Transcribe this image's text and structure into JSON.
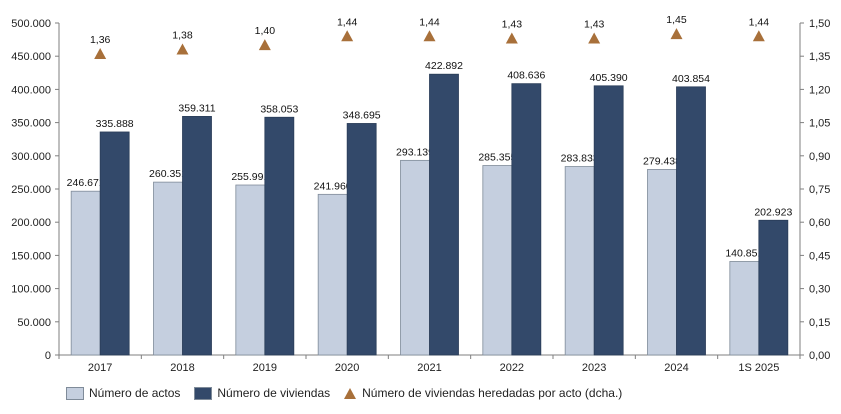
{
  "chart_data": {
    "type": "bar",
    "categories": [
      "2017",
      "2018",
      "2019",
      "2020",
      "2021",
      "2022",
      "2023",
      "2024",
      "1S 2025"
    ],
    "series": [
      {
        "name": "Número de actos",
        "axis": "left",
        "color": "#c5cfdf",
        "values": [
          246671,
          260351,
          255991,
          241960,
          293139,
          285355,
          283833,
          279438,
          140851
        ],
        "labels": [
          "246.671",
          "260.351",
          "255.991",
          "241.960",
          "293.139",
          "285.355",
          "283.833",
          "279.438",
          "140.851"
        ]
      },
      {
        "name": "Número de viviendas",
        "axis": "left",
        "color": "#33496a",
        "values": [
          335888,
          359311,
          358053,
          348695,
          422892,
          408636,
          405390,
          403854,
          202923
        ],
        "labels": [
          "335.888",
          "359.311",
          "358.053",
          "348.695",
          "422.892",
          "408.636",
          "405.390",
          "403.854",
          "202.923"
        ]
      },
      {
        "name": "Número de viviendas heredadas por acto (dcha.)",
        "axis": "right",
        "type": "scatter",
        "marker": "triangle",
        "color": "#a8703a",
        "values": [
          1.36,
          1.38,
          1.4,
          1.44,
          1.44,
          1.43,
          1.43,
          1.45,
          1.44
        ],
        "labels": [
          "1,36",
          "1,38",
          "1,40",
          "1,44",
          "1,44",
          "1,43",
          "1,43",
          "1,45",
          "1,44"
        ]
      }
    ],
    "ylim": [
      0,
      500000
    ],
    "y2lim": [
      0,
      1.5
    ],
    "y_ticks": [
      "0",
      "50.000",
      "100.000",
      "150.000",
      "200.000",
      "250.000",
      "300.000",
      "350.000",
      "400.000",
      "450.000",
      "500.000"
    ],
    "y2_ticks": [
      "0,00",
      "0,15",
      "0,30",
      "0,45",
      "0,60",
      "0,75",
      "0,90",
      "1,05",
      "1,20",
      "1,35",
      "1,50"
    ],
    "grid": false,
    "legend_position": "bottom-left"
  }
}
